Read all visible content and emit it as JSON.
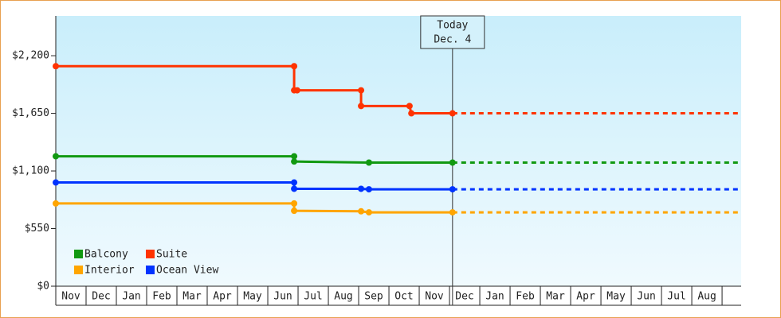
{
  "chart_data": {
    "type": "step-line",
    "ylim": [
      0,
      2580
    ],
    "yticks": [
      {
        "value": 0,
        "label": "$0"
      },
      {
        "value": 550,
        "label": "$550"
      },
      {
        "value": 1100,
        "label": "$1,100"
      },
      {
        "value": 1650,
        "label": "$1,650"
      },
      {
        "value": 2200,
        "label": "$2,200"
      }
    ],
    "xlim": [
      0,
      22.63
    ],
    "xticks": [
      {
        "value": 0.5,
        "label": "Nov"
      },
      {
        "value": 1.5,
        "label": "Dec"
      },
      {
        "value": 2.5,
        "label": "Jan"
      },
      {
        "value": 3.5,
        "label": "Feb"
      },
      {
        "value": 4.5,
        "label": "Mar"
      },
      {
        "value": 5.5,
        "label": "Apr"
      },
      {
        "value": 6.5,
        "label": "May"
      },
      {
        "value": 7.5,
        "label": "Jun"
      },
      {
        "value": 8.5,
        "label": "Jul"
      },
      {
        "value": 9.5,
        "label": "Aug"
      },
      {
        "value": 10.5,
        "label": "Sep"
      },
      {
        "value": 11.5,
        "label": "Oct"
      },
      {
        "value": 12.5,
        "label": "Nov"
      },
      {
        "value": 13.5,
        "label": "Dec"
      },
      {
        "value": 14.5,
        "label": "Jan"
      },
      {
        "value": 15.5,
        "label": "Feb"
      },
      {
        "value": 16.5,
        "label": "Mar"
      },
      {
        "value": 17.5,
        "label": "Apr"
      },
      {
        "value": 18.5,
        "label": "May"
      },
      {
        "value": 19.5,
        "label": "Jun"
      },
      {
        "value": 20.5,
        "label": "Jul"
      },
      {
        "value": 21.5,
        "label": "Aug"
      }
    ],
    "annotation": {
      "lines": [
        "Today",
        "Dec. 4"
      ],
      "x": 13.1
    },
    "legend": "lower left",
    "series": [
      {
        "name": "Balcony",
        "color": "#119911",
        "x": [
          0,
          7.87,
          7.87,
          10.34,
          13.1
        ],
        "values": [
          1240,
          1240,
          1190,
          1180,
          1180
        ]
      },
      {
        "name": "Suite",
        "color": "#ff3300",
        "x": [
          0,
          7.87,
          7.87,
          7.97,
          10.08,
          10.08,
          11.68,
          11.74,
          13.1
        ],
        "values": [
          2100,
          2100,
          1870,
          1870,
          1870,
          1720,
          1720,
          1650,
          1650
        ]
      },
      {
        "name": "Interior",
        "color": "#ffa500",
        "x": [
          0,
          7.87,
          7.87,
          10.08,
          10.34,
          13.1
        ],
        "values": [
          790,
          790,
          720,
          715,
          705,
          705
        ]
      },
      {
        "name": "Ocean View",
        "color": "#0033ff",
        "x": [
          0,
          7.87,
          7.87,
          10.08,
          10.34,
          13.1
        ],
        "values": [
          990,
          990,
          930,
          930,
          925,
          925
        ]
      }
    ]
  }
}
